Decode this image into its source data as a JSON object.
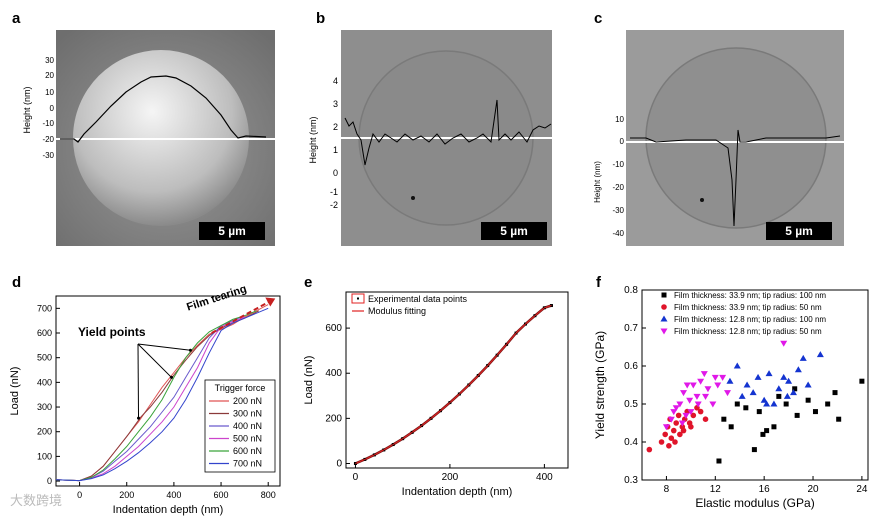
{
  "panels": {
    "a": {
      "letter": "a",
      "ylabel": "Height (nm)",
      "ticks": [
        "30",
        "20",
        "10",
        "0",
        "-10",
        "-20",
        "-30"
      ],
      "scalebar": "5 µm"
    },
    "b": {
      "letter": "b",
      "ylabel": "Height (nm)",
      "ticks": [
        "4",
        "3",
        "2",
        "1",
        "0",
        "-1",
        "-2"
      ],
      "scalebar": "5 µm"
    },
    "c": {
      "letter": "c",
      "ylabel": "Height (nm)",
      "ticks": [
        "10",
        "0",
        "-10",
        "-20",
        "-30",
        "-40"
      ],
      "scalebar": "5 µm"
    },
    "d": {
      "letter": "d"
    },
    "e": {
      "letter": "e"
    },
    "f": {
      "letter": "f"
    }
  },
  "chart_data": [
    {
      "id": "d",
      "type": "line",
      "xlabel": "Indentation depth (nm)",
      "ylabel": "Load (nN)",
      "xlim": [
        -100,
        850
      ],
      "ylim": [
        -20,
        750
      ],
      "xticks": [
        0,
        200,
        400,
        600,
        800
      ],
      "yticks": [
        0,
        100,
        200,
        300,
        400,
        500,
        600,
        700
      ],
      "legend_title": "Trigger force",
      "annotations": [
        "Yield points",
        "Film tearing"
      ],
      "series": [
        {
          "name": "200 nN",
          "color": "#e05555",
          "points": [
            [
              -100,
              5
            ],
            [
              0,
              2
            ],
            [
              50,
              20
            ],
            [
              100,
              60
            ],
            [
              150,
              120
            ],
            [
              200,
              180
            ],
            [
              250,
              240
            ],
            [
              300,
              310
            ],
            [
              350,
              380
            ],
            [
              400,
              440
            ],
            [
              450,
              500
            ],
            [
              500,
              550
            ],
            [
              550,
              595
            ],
            [
              600,
              615
            ],
            [
              650,
              635
            ],
            [
              700,
              665
            ],
            [
              750,
              690
            ],
            [
              800,
              715
            ]
          ]
        },
        {
          "name": "300 nN",
          "color": "#8b3a3a",
          "points": [
            [
              -100,
              5
            ],
            [
              0,
              2
            ],
            [
              50,
              20
            ],
            [
              100,
              60
            ],
            [
              150,
              120
            ],
            [
              200,
              180
            ],
            [
              260,
              260
            ],
            [
              300,
              300
            ],
            [
              350,
              360
            ],
            [
              400,
              430
            ],
            [
              450,
              490
            ],
            [
              500,
              545
            ],
            [
              550,
              590
            ],
            [
              600,
              620
            ],
            [
              650,
              640
            ],
            [
              700,
              660
            ],
            [
              760,
              690
            ]
          ]
        },
        {
          "name": "400 nN",
          "color": "#6a5acd",
          "points": [
            [
              -100,
              5
            ],
            [
              0,
              2
            ],
            [
              50,
              15
            ],
            [
              100,
              40
            ],
            [
              150,
              80
            ],
            [
              200,
              120
            ],
            [
              250,
              170
            ],
            [
              300,
              220
            ],
            [
              350,
              280
            ],
            [
              400,
              340
            ],
            [
              450,
              420
            ],
            [
              500,
              500
            ],
            [
              550,
              580
            ],
            [
              600,
              630
            ],
            [
              650,
              650
            ],
            [
              700,
              670
            ]
          ]
        },
        {
          "name": "500 nN",
          "color": "#cc44cc",
          "points": [
            [
              -100,
              5
            ],
            [
              0,
              2
            ],
            [
              50,
              12
            ],
            [
              100,
              30
            ],
            [
              150,
              60
            ],
            [
              200,
              100
            ],
            [
              250,
              140
            ],
            [
              300,
              190
            ],
            [
              350,
              240
            ],
            [
              400,
              300
            ],
            [
              450,
              380
            ],
            [
              500,
              460
            ],
            [
              550,
              560
            ],
            [
              600,
              625
            ],
            [
              650,
              645
            ],
            [
              700,
              665
            ]
          ]
        },
        {
          "name": "600 nN",
          "color": "#3aa33a",
          "points": [
            [
              -100,
              5
            ],
            [
              0,
              2
            ],
            [
              50,
              15
            ],
            [
              100,
              45
            ],
            [
              150,
              90
            ],
            [
              200,
              140
            ],
            [
              250,
              200
            ],
            [
              300,
              260
            ],
            [
              350,
              330
            ],
            [
              400,
              420
            ],
            [
              450,
              500
            ],
            [
              500,
              560
            ],
            [
              550,
              605
            ],
            [
              600,
              630
            ],
            [
              650,
              655
            ],
            [
              700,
              670
            ],
            [
              750,
              690
            ]
          ]
        },
        {
          "name": "700 nN",
          "color": "#3344cc",
          "points": [
            [
              -100,
              5
            ],
            [
              0,
              2
            ],
            [
              50,
              10
            ],
            [
              100,
              25
            ],
            [
              150,
              50
            ],
            [
              200,
              80
            ],
            [
              250,
              115
            ],
            [
              300,
              155
            ],
            [
              350,
              200
            ],
            [
              400,
              255
            ],
            [
              450,
              330
            ],
            [
              500,
              420
            ],
            [
              550,
              520
            ],
            [
              600,
              610
            ],
            [
              650,
              640
            ],
            [
              700,
              660
            ],
            [
              800,
              700
            ]
          ]
        }
      ]
    },
    {
      "id": "e",
      "type": "scatter",
      "xlabel": "Indentation depth (nm)",
      "ylabel": "Load (nN)",
      "xlim": [
        -20,
        450
      ],
      "ylim": [
        -20,
        760
      ],
      "xticks": [
        0,
        200,
        400
      ],
      "yticks": [
        0,
        200,
        400,
        600
      ],
      "legend": [
        "Experimental data points",
        "Modulus fitting"
      ],
      "x": [
        0,
        20,
        40,
        60,
        80,
        100,
        120,
        140,
        160,
        180,
        200,
        220,
        240,
        260,
        280,
        300,
        320,
        340,
        360,
        380,
        400,
        415
      ],
      "y": [
        0,
        18,
        38,
        60,
        84,
        110,
        138,
        168,
        200,
        234,
        270,
        308,
        348,
        390,
        434,
        480,
        528,
        578,
        618,
        655,
        690,
        700
      ]
    },
    {
      "id": "f",
      "type": "scatter",
      "xlabel": "Elastic modulus (GPa)",
      "ylabel": "Yield strength (GPa)",
      "xlim": [
        6,
        24.5
      ],
      "ylim": [
        0.3,
        0.8
      ],
      "xticks": [
        8,
        12,
        16,
        20,
        24
      ],
      "yticks": [
        0.3,
        0.4,
        0.5,
        0.6,
        0.7,
        0.8
      ],
      "series": [
        {
          "name": "Film thickness: 33.9 nm; tip radius: 100 nm",
          "color": "#000000",
          "marker": "square",
          "x": [
            12.3,
            12.7,
            13.3,
            13.8,
            14.5,
            15.2,
            15.6,
            16.2,
            17.2,
            17.8,
            18.5,
            19.6,
            20.2,
            21.2,
            21.8,
            22.1,
            24.0,
            15.9,
            16.8,
            18.7
          ],
          "y": [
            0.35,
            0.46,
            0.44,
            0.5,
            0.49,
            0.38,
            0.48,
            0.43,
            0.52,
            0.5,
            0.54,
            0.51,
            0.48,
            0.5,
            0.53,
            0.46,
            0.56,
            0.42,
            0.44,
            0.47
          ]
        },
        {
          "name": "Film thickness: 33.9 nm; tip radius: 50 nm",
          "color": "#e0142a",
          "marker": "circle",
          "x": [
            6.6,
            7.6,
            7.9,
            8.1,
            8.3,
            8.4,
            8.6,
            8.8,
            9.0,
            9.1,
            9.3,
            9.5,
            9.7,
            9.9,
            10.2,
            10.5,
            10.8,
            11.2,
            8.2,
            8.7,
            9.4,
            10.0
          ],
          "y": [
            0.38,
            0.4,
            0.42,
            0.44,
            0.46,
            0.41,
            0.43,
            0.45,
            0.47,
            0.42,
            0.44,
            0.46,
            0.48,
            0.45,
            0.47,
            0.49,
            0.48,
            0.46,
            0.39,
            0.4,
            0.43,
            0.44
          ]
        },
        {
          "name": "Film thickness: 12.8 nm; tip radius: 100 nm",
          "color": "#1434d0",
          "marker": "triangle-up",
          "x": [
            13.2,
            13.8,
            14.2,
            14.6,
            15.1,
            15.5,
            16.0,
            16.4,
            16.8,
            17.2,
            17.6,
            18.0,
            18.4,
            18.8,
            19.2,
            19.6,
            20.6,
            16.2,
            17.9
          ],
          "y": [
            0.56,
            0.6,
            0.52,
            0.55,
            0.53,
            0.57,
            0.51,
            0.58,
            0.5,
            0.54,
            0.57,
            0.56,
            0.53,
            0.59,
            0.62,
            0.55,
            0.63,
            0.5,
            0.52
          ]
        },
        {
          "name": "Film thickness: 12.8 nm; tip radius: 50 nm",
          "color": "#e018e8",
          "marker": "triangle-down",
          "x": [
            8.0,
            8.4,
            8.8,
            9.1,
            9.4,
            9.6,
            9.9,
            10.2,
            10.5,
            10.8,
            11.1,
            11.4,
            11.8,
            12.2,
            12.6,
            13.0,
            9.3,
            10.0,
            10.6,
            11.2,
            17.6,
            8.6,
            9.7,
            12.0
          ],
          "y": [
            0.44,
            0.46,
            0.49,
            0.5,
            0.53,
            0.47,
            0.51,
            0.55,
            0.52,
            0.56,
            0.58,
            0.54,
            0.5,
            0.55,
            0.57,
            0.53,
            0.45,
            0.48,
            0.5,
            0.52,
            0.66,
            0.48,
            0.55,
            0.57
          ]
        }
      ]
    }
  ],
  "watermark": "大数跨境"
}
